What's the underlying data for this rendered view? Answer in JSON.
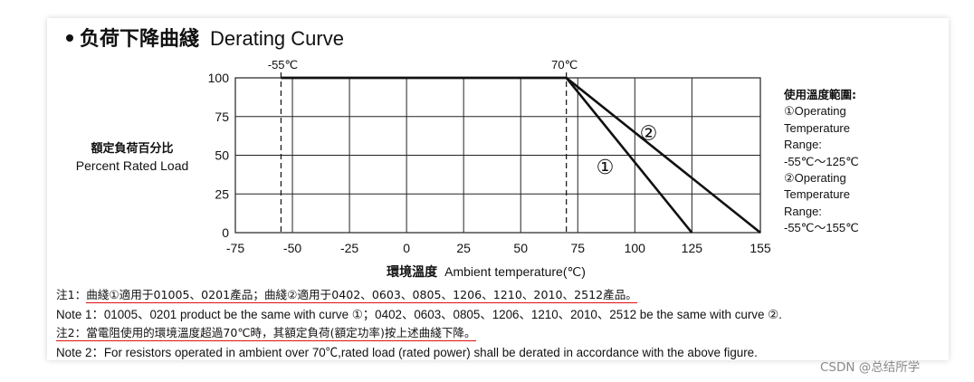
{
  "title": {
    "cn": "负荷下降曲綫",
    "en": "Derating Curve"
  },
  "chart_data": {
    "type": "line",
    "title": "Derating Curve",
    "xlabel": "環境溫度 Ambient temperature(℃)",
    "ylabel": "額定負荷百分比 Percent Rated Load",
    "xlim": [
      -75,
      155
    ],
    "ylim": [
      0,
      100
    ],
    "x_ticks": [
      -75,
      -50,
      -25,
      0,
      25,
      50,
      75,
      100,
      125,
      155
    ],
    "y_ticks": [
      0,
      25,
      50,
      75,
      100
    ],
    "grid": true,
    "series": [
      {
        "name": "①",
        "points": [
          [
            -55,
            100
          ],
          [
            70,
            100
          ],
          [
            125,
            0
          ]
        ]
      },
      {
        "name": "②",
        "points": [
          [
            -55,
            100
          ],
          [
            70,
            100
          ],
          [
            155,
            0
          ]
        ]
      }
    ],
    "annotations": [
      {
        "text": "-55℃",
        "x": -55
      },
      {
        "text": "70℃",
        "x": 70
      }
    ]
  },
  "ylabel_cn": "額定負荷百分比",
  "ylabel_en": "Percent Rated Load",
  "xlabel_cn": "環境溫度",
  "xlabel_en": "Ambient temperature(℃)",
  "ann_left": "-55℃",
  "ann_right": "70℃",
  "curve1_label": "①",
  "curve2_label": "②",
  "side_panel": {
    "heading": "使用溫度範圍:",
    "lines": [
      "①Operating",
      "Temperature",
      "Range:",
      "-55℃～125℃",
      "②Operating",
      "Temperature",
      "Range:",
      "-55℃～155℃"
    ]
  },
  "notes": {
    "note1_cn_prefix": "注1：",
    "note1_cn_body": "曲綫①適用于01005、0201產品；曲綫②適用于0402、0603、0805、1206、1210、2010、2512產品。",
    "note1_en": "Note 1：01005、0201 product be the same with curve ①；0402、0603、0805、1206、1210、2010、2512 be the same with curve ②.",
    "note2_cn_prefix": "注2：",
    "note2_cn_body": "當電阻使用的環境溫度超過70℃時，其額定負荷(額定功率)按上述曲綫下降。",
    "note2_en": "Note 2：For resistors operated in ambient over 70℃,rated load (rated power) shall be derated in accordance with the above figure."
  },
  "watermark": "CSDN @总结所学",
  "colors": {
    "underline": "#dd1111",
    "watermark": "#8a8a8a"
  }
}
